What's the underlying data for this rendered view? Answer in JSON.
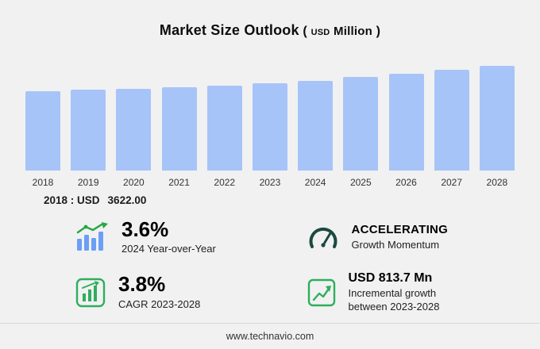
{
  "title": {
    "main": "Market Size Outlook",
    "paren_open": "(",
    "unit_small": "USD",
    "unit": "Million",
    "paren_close": ")"
  },
  "chart_data": {
    "type": "bar",
    "categories": [
      "2018",
      "2019",
      "2020",
      "2021",
      "2022",
      "2023",
      "2024",
      "2025",
      "2026",
      "2027",
      "2028"
    ],
    "values": [
      3622,
      3700,
      3745,
      3800,
      3870,
      3971,
      4114,
      4270,
      4440,
      4610,
      4785
    ],
    "title": "Market Size Outlook (USD Million)",
    "xlabel": "Year",
    "ylabel": "USD Million",
    "ylim": [
      0,
      4800
    ],
    "grid": false,
    "legend": false,
    "bar_color": "#a7c4f8"
  },
  "baseline_note": {
    "label": "2018 : USD",
    "value": "3622.00"
  },
  "stats": {
    "yoy": {
      "value": "3.6%",
      "label": "2024 Year-over-Year",
      "icon": "bar-chart-growth-icon"
    },
    "momentum": {
      "value": "ACCELERATING",
      "label": "Growth Momentum",
      "icon": "gauge-icon"
    },
    "cagr": {
      "value": "3.8%",
      "label": "CAGR 2023-2028",
      "icon": "bar-chart-box-icon"
    },
    "incremental": {
      "value": "USD 813.7 Mn",
      "label_line1": "Incremental growth",
      "label_line2": "between 2023-2028",
      "icon": "line-chart-box-icon"
    }
  },
  "footer": {
    "url": "www.technavio.com"
  },
  "colors": {
    "bar": "#a7c4f8",
    "green": "#2fae5d",
    "dark_green": "#1c4a40",
    "background": "#f1f1f2"
  }
}
